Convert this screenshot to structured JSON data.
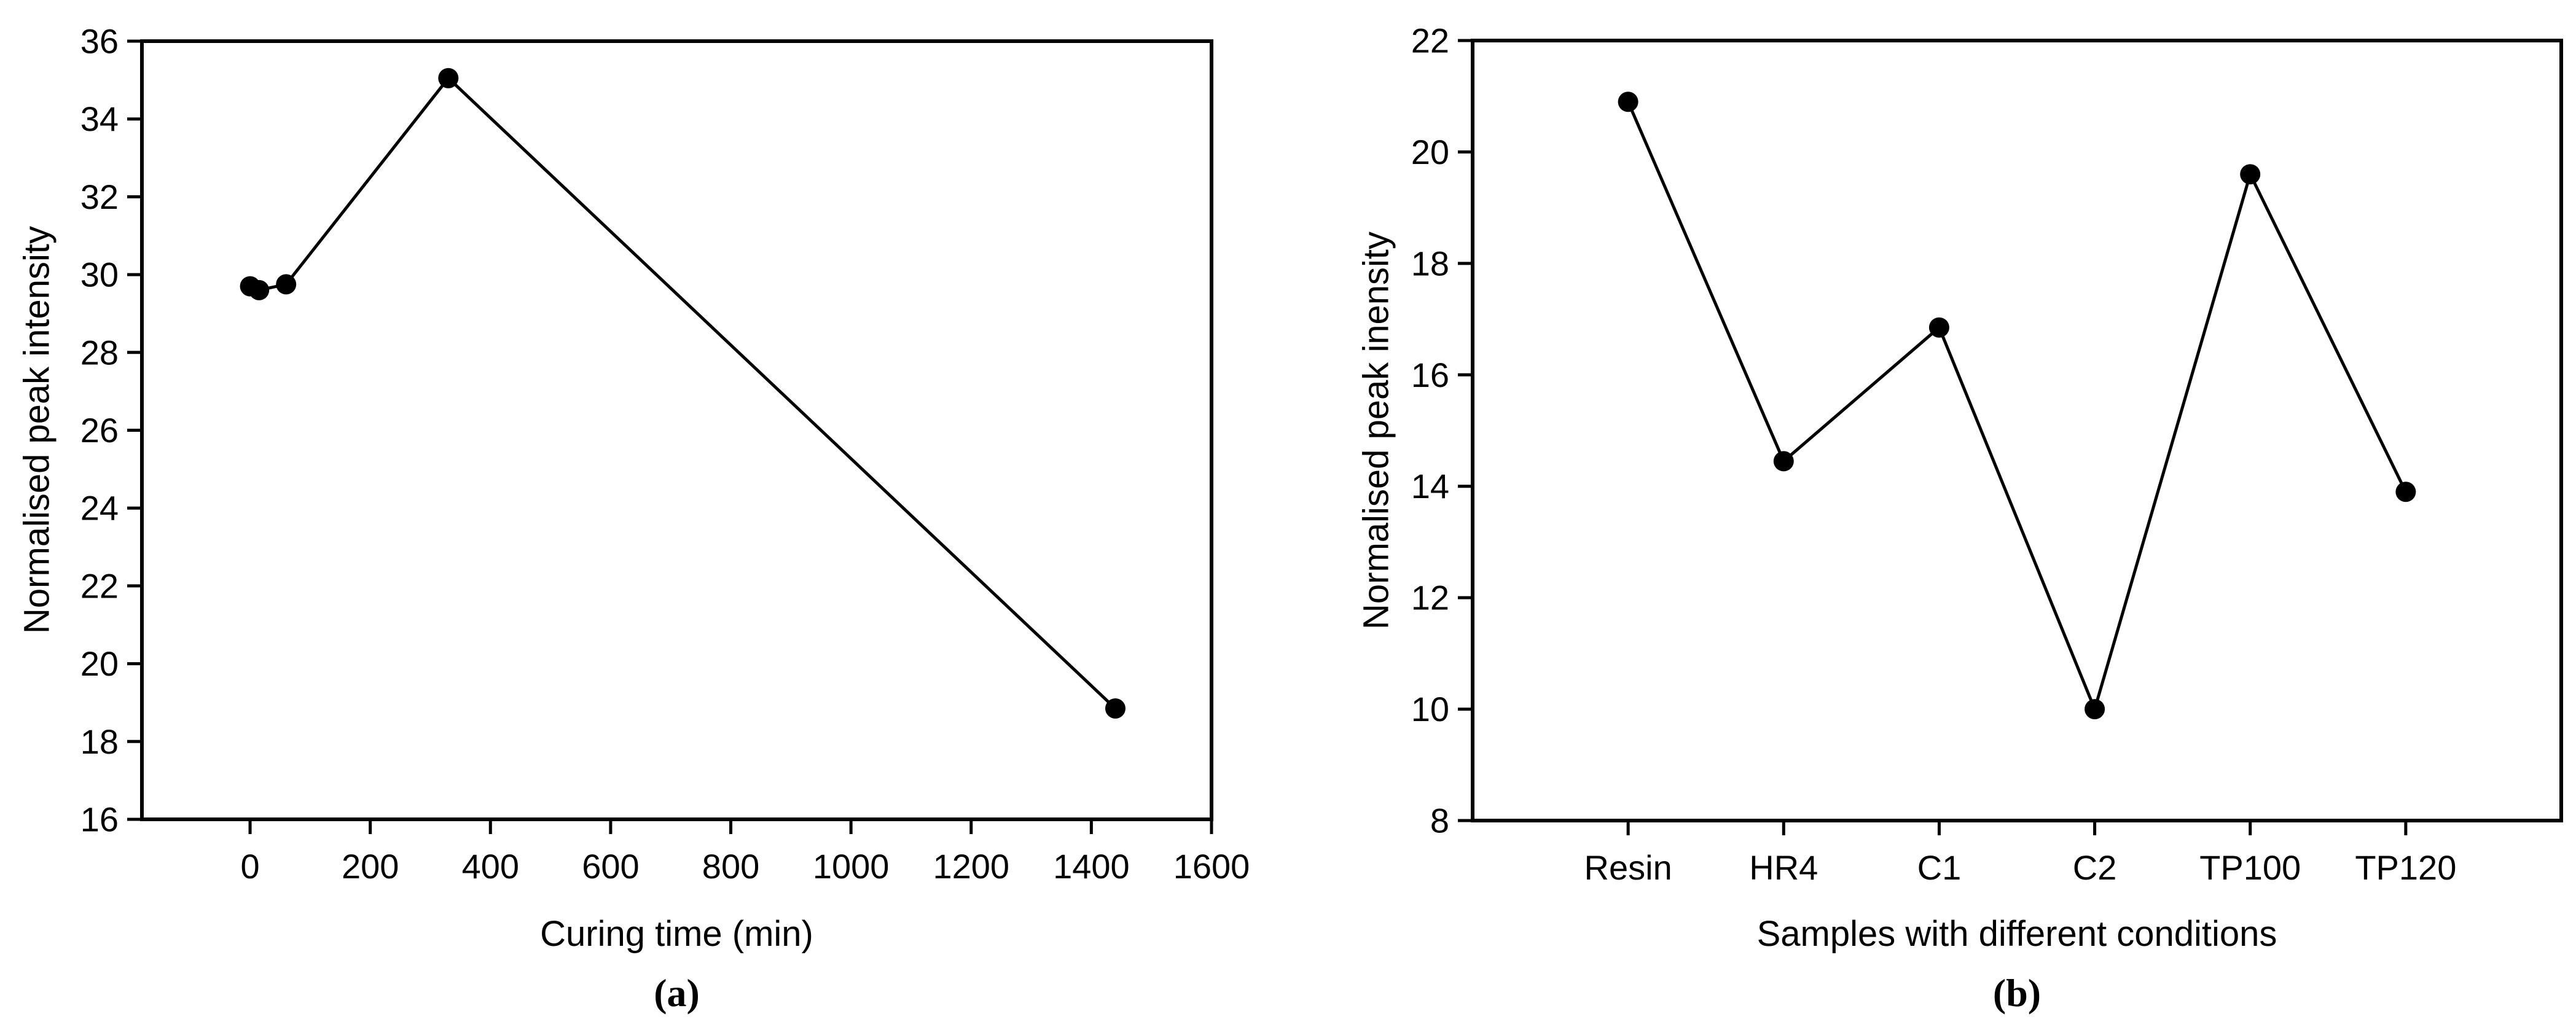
{
  "figure": {
    "background": "#ffffff",
    "ink_color": "#000000",
    "marker": "filled-circle"
  },
  "chart_data": [
    {
      "type": "line",
      "panel": "a",
      "sublabel": "(a)",
      "xlabel": "Curing time (min)",
      "ylabel": "Normalised peak intensity",
      "x": [
        0,
        15,
        60,
        330,
        1440
      ],
      "y": [
        29.7,
        29.6,
        29.75,
        35.05,
        18.85
      ],
      "xlim": [
        -180,
        1600
      ],
      "ylim": [
        16,
        36
      ],
      "xticks": [
        0,
        200,
        400,
        600,
        800,
        1000,
        1200,
        1400,
        1600
      ],
      "yticks": [
        16,
        18,
        20,
        22,
        24,
        26,
        28,
        30,
        32,
        34,
        36
      ],
      "grid": false,
      "legend": null
    },
    {
      "type": "line",
      "panel": "b",
      "sublabel": "(b)",
      "xlabel": "Samples with different conditions",
      "ylabel": "Normalised peak inensity",
      "categories": [
        "Resin",
        "HR4",
        "C1",
        "C2",
        "TP100",
        "TP120"
      ],
      "values": [
        20.9,
        14.45,
        16.85,
        10.0,
        19.6,
        13.9
      ],
      "ylim": [
        8,
        22
      ],
      "yticks": [
        8,
        10,
        12,
        14,
        16,
        18,
        20,
        22
      ],
      "grid": false,
      "legend": null
    }
  ]
}
